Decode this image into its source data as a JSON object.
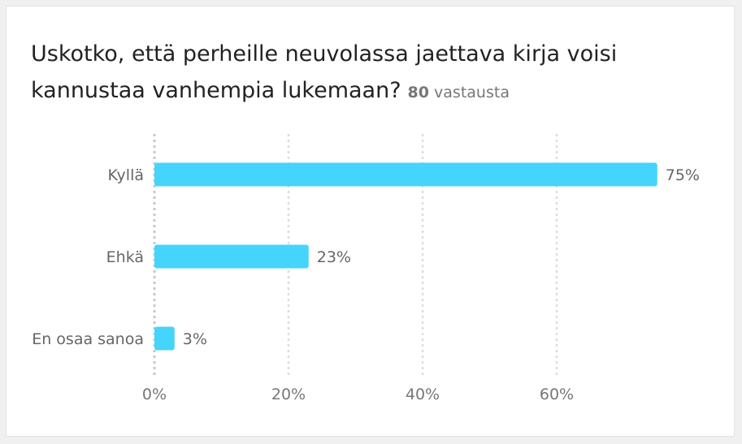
{
  "card": {
    "title": "Uskotko, että perheille neuvolassa jaettava kirja voisi kannustaa vanhempia lukemaan?",
    "response_count": "80",
    "response_unit": "vastausta"
  },
  "chart_data": {
    "type": "bar",
    "orientation": "horizontal",
    "categories": [
      "Kyllä",
      "Ehkä",
      "En osaa sanoa"
    ],
    "values": [
      75,
      23,
      3
    ],
    "value_labels": [
      "75%",
      "23%",
      "3%"
    ],
    "xlim": [
      0,
      80
    ],
    "xticks": [
      0,
      20,
      40,
      60
    ],
    "xtick_labels": [
      "0%",
      "20%",
      "40%",
      "60%"
    ],
    "grid": true,
    "bar_color": "#44d4fc",
    "grid_color": "#dddddd"
  }
}
